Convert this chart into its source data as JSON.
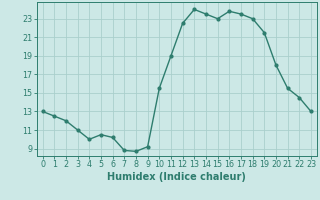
{
  "x": [
    0,
    1,
    2,
    3,
    4,
    5,
    6,
    7,
    8,
    9,
    10,
    11,
    12,
    13,
    14,
    15,
    16,
    17,
    18,
    19,
    20,
    21,
    22,
    23
  ],
  "y": [
    13,
    12.5,
    12,
    11,
    10,
    10.5,
    10.2,
    8.8,
    8.7,
    9.2,
    15.5,
    19,
    22.5,
    24,
    23.5,
    23,
    23.8,
    23.5,
    23,
    21.5,
    18,
    15.5,
    14.5,
    13
  ],
  "line_color": "#2e7d6e",
  "marker": "o",
  "marker_size": 2.0,
  "bg_color": "#cce8e6",
  "grid_color": "#aacfcc",
  "xlabel": "Humidex (Indice chaleur)",
  "xlim": [
    -0.5,
    23.5
  ],
  "ylim": [
    8.2,
    24.8
  ],
  "yticks": [
    9,
    11,
    13,
    15,
    17,
    19,
    21,
    23
  ],
  "xticks": [
    0,
    1,
    2,
    3,
    4,
    5,
    6,
    7,
    8,
    9,
    10,
    11,
    12,
    13,
    14,
    15,
    16,
    17,
    18,
    19,
    20,
    21,
    22,
    23
  ],
  "tick_label_fontsize": 5.8,
  "xlabel_fontsize": 7.0,
  "line_width": 1.0,
  "axis_color": "#2e7d6e"
}
